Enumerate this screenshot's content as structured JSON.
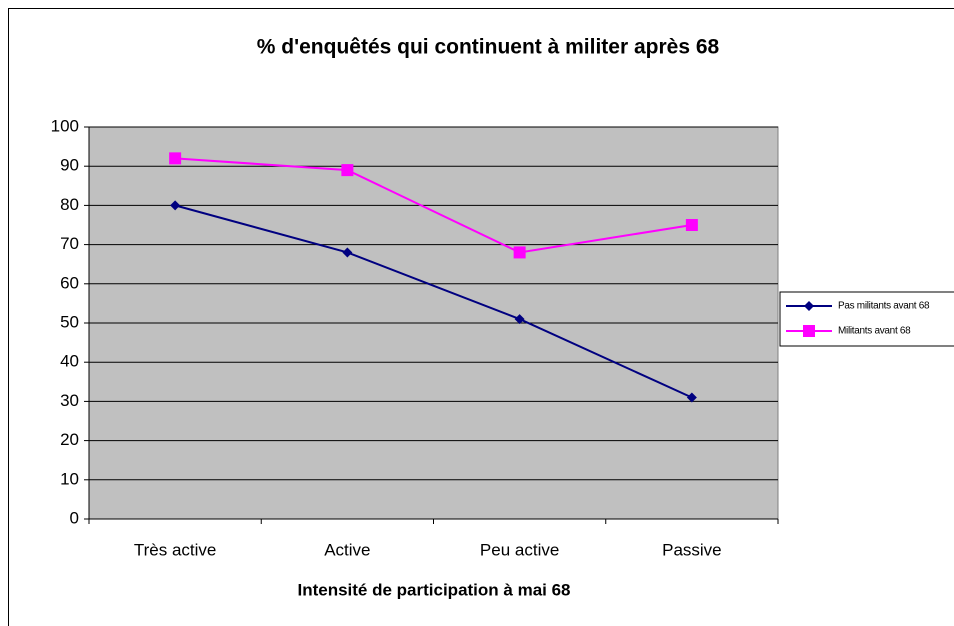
{
  "chart_data": {
    "type": "line",
    "title": "% d'enquêtés qui continuent à militer après 68",
    "x_label": "Intensité de participation à mai 68",
    "categories": [
      "Très active",
      "Active",
      "Peu active",
      "Passive"
    ],
    "series": [
      {
        "name": "Pas militants avant 68",
        "color": "#000080",
        "marker": "diamond",
        "values": [
          80,
          68,
          51,
          31
        ]
      },
      {
        "name": "Militants avant 68",
        "color": "#ff00ff",
        "marker": "square",
        "values": [
          92,
          89,
          68,
          75
        ]
      }
    ],
    "ylim": [
      0,
      100
    ],
    "yticks": [
      0,
      10,
      20,
      30,
      40,
      50,
      60,
      70,
      80,
      90,
      100
    ],
    "grid": true,
    "legend": "right",
    "plot_background": "#c0c0c0"
  }
}
